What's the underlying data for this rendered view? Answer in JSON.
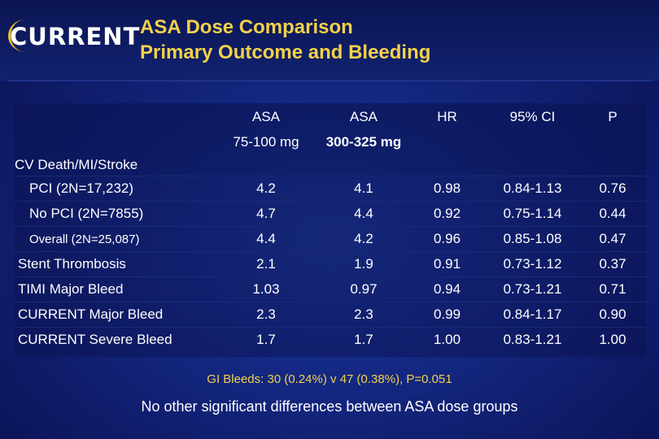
{
  "logo": {
    "text": "CURRENT"
  },
  "title": {
    "line1": "ASA Dose Comparison",
    "line2": "Primary Outcome and Bleeding"
  },
  "table": {
    "headers": [
      {
        "line1": "",
        "line2": ""
      },
      {
        "line1": "ASA",
        "line2": "75-100 mg"
      },
      {
        "line1": "ASA",
        "line2": "300-325 mg"
      },
      {
        "line1": "HR",
        "line2": ""
      },
      {
        "line1": "95% CI",
        "line2": ""
      },
      {
        "line1": "P",
        "line2": ""
      }
    ],
    "section": "CV Death/MI/Stroke",
    "rows": [
      {
        "label": "PCI (2N=17,232)",
        "low": "4.2",
        "high": "4.1",
        "hr": "0.98",
        "ci": "0.84-1.13",
        "p": "0.76"
      },
      {
        "label": "No PCI (2N=7855)",
        "low": "4.7",
        "high": "4.4",
        "hr": "0.92",
        "ci": "0.75-1.14",
        "p": "0.44"
      },
      {
        "label": "Overall (2N=25,087)",
        "low": "4.4",
        "high": "4.2",
        "hr": "0.96",
        "ci": "0.85-1.08",
        "p": "0.47"
      },
      {
        "label": "Stent Thrombosis",
        "low": "2.1",
        "high": "1.9",
        "hr": "0.91",
        "ci": "0.73-1.12",
        "p": "0.37"
      },
      {
        "label": "TIMI Major Bleed",
        "low": "1.03",
        "high": "0.97",
        "hr": "0.94",
        "ci": "0.73-1.21",
        "p": "0.71"
      },
      {
        "label": "CURRENT Major Bleed",
        "low": "2.3",
        "high": "2.3",
        "hr": "0.99",
        "ci": "0.84-1.17",
        "p": "0.90"
      },
      {
        "label": "CURRENT Severe Bleed",
        "low": "1.7",
        "high": "1.7",
        "hr": "1.00",
        "ci": "0.83-1.21",
        "p": "1.00"
      }
    ]
  },
  "footnote": "GI Bleeds: 30 (0.24%) v 47 (0.38%), P=0.051",
  "bottom_note": "No other significant differences between ASA dose groups",
  "colors": {
    "title": "#f2d14a",
    "background": "#152a86",
    "text": "#ffffff",
    "logo_accent": "#f0c419"
  }
}
